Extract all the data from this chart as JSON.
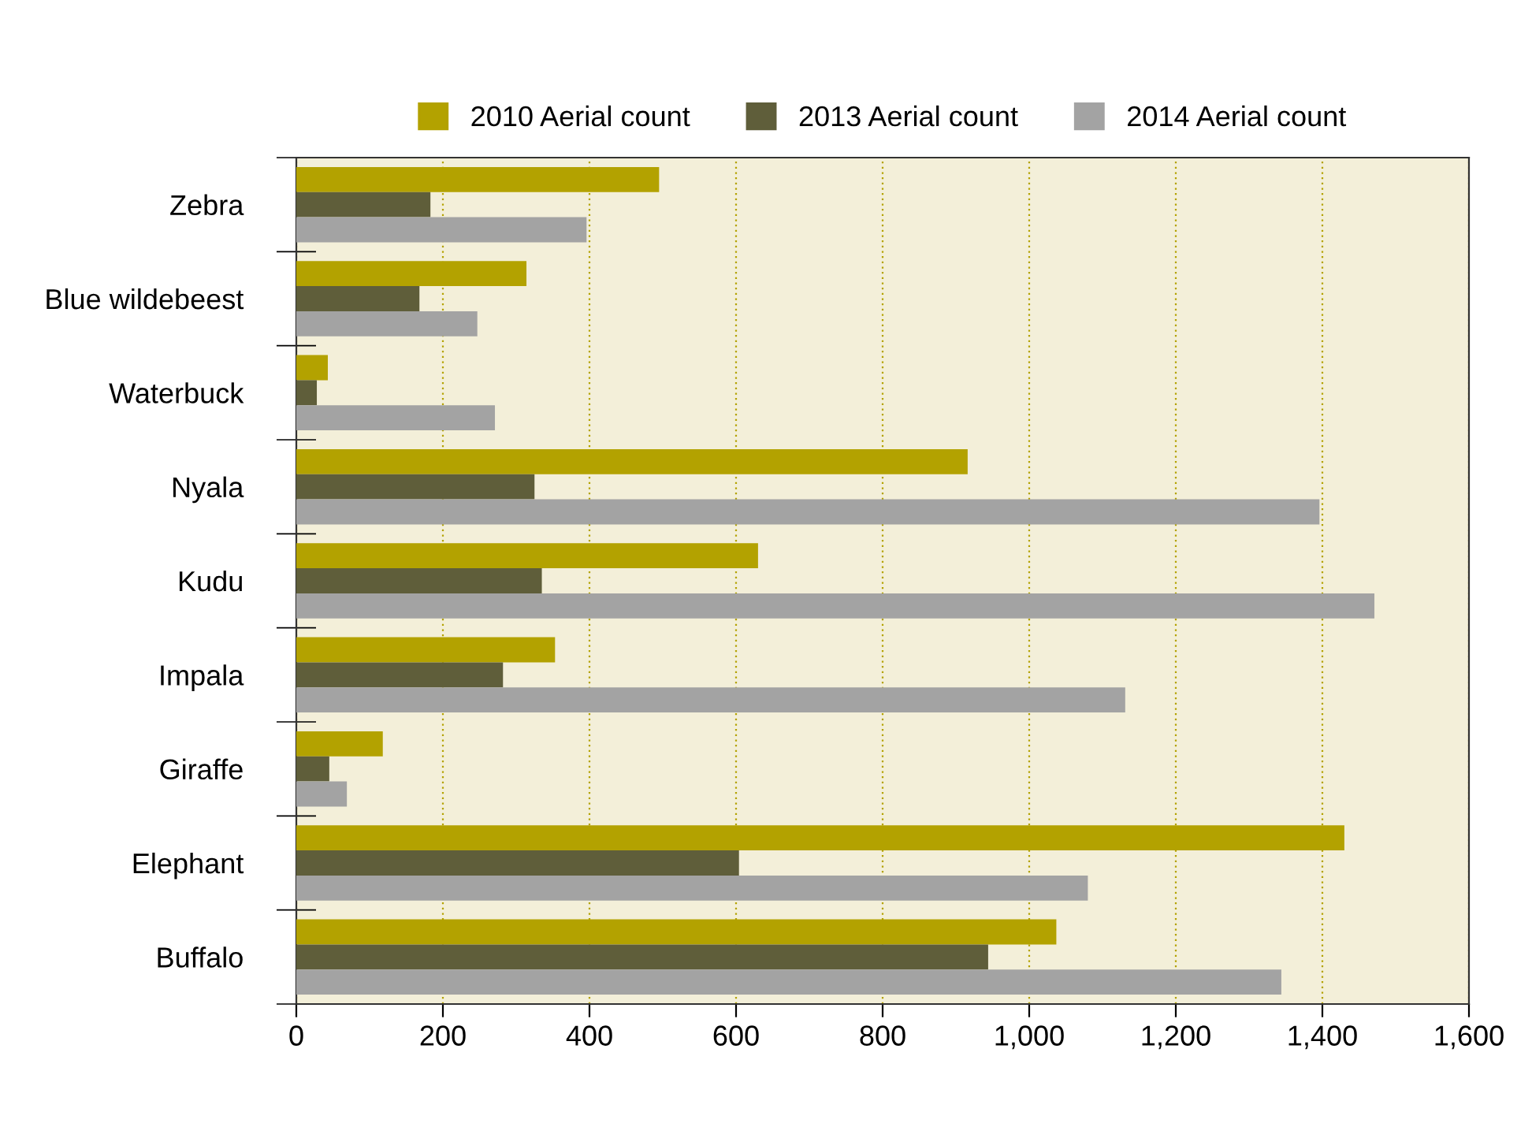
{
  "chart_data": {
    "type": "bar",
    "orientation": "horizontal",
    "categories": [
      "Zebra",
      "Blue wildebeest",
      "Waterbuck",
      "Nyala",
      "Kudu",
      "Impala",
      "Giraffe",
      "Elephant",
      "Buffalo"
    ],
    "series": [
      {
        "name": "2010 Aerial count",
        "color": "#b3a200",
        "values": [
          495,
          314,
          43,
          916,
          630,
          353,
          118,
          1430,
          1037
        ]
      },
      {
        "name": "2013 Aerial count",
        "color": "#5f5e3a",
        "values": [
          183,
          168,
          28,
          325,
          335,
          282,
          45,
          604,
          944
        ]
      },
      {
        "name": "2014 Aerial count",
        "color": "#a3a3a3",
        "values": [
          396,
          247,
          271,
          1396,
          1471,
          1131,
          69,
          1080,
          1344
        ]
      }
    ],
    "xlim": [
      0,
      1600
    ],
    "xticks": [
      0,
      200,
      400,
      600,
      {
        "value": 800,
        "label": "800"
      },
      {
        "value": 1000,
        "label": "1,000"
      },
      {
        "value": 1200,
        "label": "1,200"
      },
      {
        "value": 1400,
        "label": "1,400"
      },
      {
        "value": 1600,
        "label": "1,600"
      }
    ],
    "grid": "x",
    "legend": "top"
  }
}
